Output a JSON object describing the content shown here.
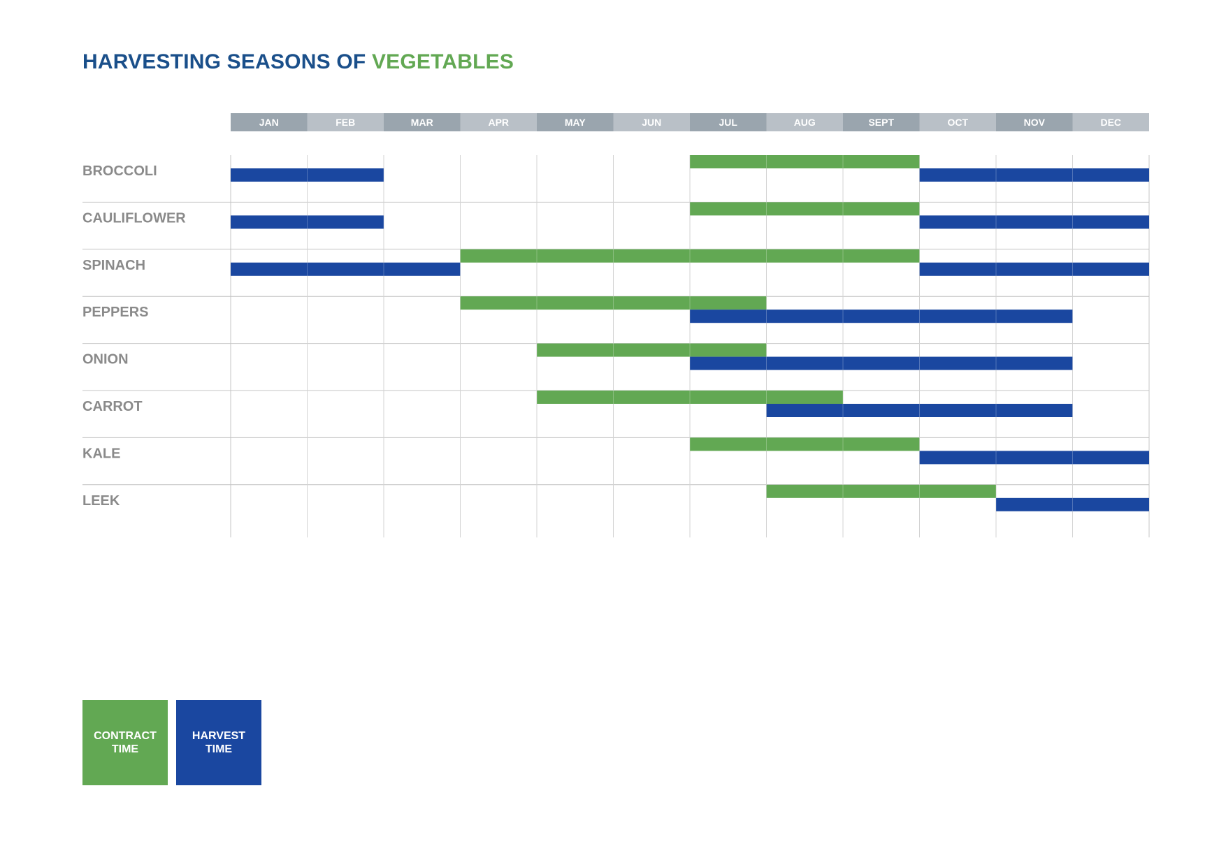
{
  "title": {
    "part1": "HARVESTING SEASONS OF",
    "part2": "VEGETABLES"
  },
  "colors": {
    "title_blue": "#1a4f8a",
    "title_green": "#62a853",
    "contract": "#62a853",
    "harvest": "#1a47a0",
    "header_dark": "#9aa5ae",
    "header_light": "#b9c0c7",
    "row_label": "#8a8a8a",
    "grid": "#c4c4c4"
  },
  "chart_data": {
    "type": "gantt",
    "months": [
      "JAN",
      "FEB",
      "MAR",
      "APR",
      "MAY",
      "JUN",
      "JUL",
      "AUG",
      "SEPT",
      "OCT",
      "NOV",
      "DEC"
    ],
    "series": [
      {
        "name": "CONTRACT TIME",
        "color": "#62a853"
      },
      {
        "name": "HARVEST TIME",
        "color": "#1a47a0"
      }
    ],
    "rows": [
      {
        "label": "BROCCOLI",
        "contract": [
          [
            7,
            9
          ]
        ],
        "harvest": [
          [
            1,
            2
          ],
          [
            10,
            12
          ]
        ]
      },
      {
        "label": "CAULIFLOWER",
        "contract": [
          [
            7,
            9
          ]
        ],
        "harvest": [
          [
            1,
            2
          ],
          [
            10,
            12
          ]
        ]
      },
      {
        "label": "SPINACH",
        "contract": [
          [
            4,
            9
          ]
        ],
        "harvest": [
          [
            1,
            3
          ],
          [
            10,
            12
          ]
        ]
      },
      {
        "label": "PEPPERS",
        "contract": [
          [
            4,
            7
          ]
        ],
        "harvest": [
          [
            7,
            11
          ]
        ]
      },
      {
        "label": "ONION",
        "contract": [
          [
            5,
            7
          ]
        ],
        "harvest": [
          [
            7,
            11
          ]
        ]
      },
      {
        "label": "CARROT",
        "contract": [
          [
            5,
            8
          ]
        ],
        "harvest": [
          [
            8,
            11
          ]
        ]
      },
      {
        "label": "KALE",
        "contract": [
          [
            7,
            9
          ]
        ],
        "harvest": [
          [
            10,
            12
          ]
        ]
      },
      {
        "label": "LEEK",
        "contract": [
          [
            8,
            10
          ]
        ],
        "harvest": [
          [
            11,
            12
          ]
        ]
      }
    ]
  },
  "legend": [
    {
      "label": "CONTRACT\nTIME",
      "color": "#62a853"
    },
    {
      "label": "HARVEST\nTIME",
      "color": "#1a47a0"
    }
  ]
}
